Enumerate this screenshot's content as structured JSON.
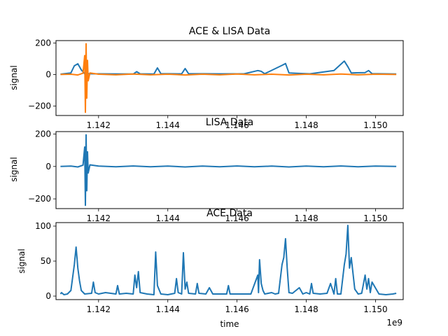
{
  "figure": {
    "xlabel": "time",
    "x_offset_label": "1e9",
    "colors": {
      "lisa": "#1f77b4",
      "ace_top": "#1f77b4",
      "top_overlay": "#ff7f0e"
    }
  },
  "chart_data": [
    {
      "type": "line",
      "title": "ACE & LISA Data",
      "xlabel": "",
      "ylabel": "signal",
      "xlim": [
        1.14077,
        1.1508
      ],
      "ylim": [
        -260,
        215
      ],
      "x_ticks": [
        1.142,
        1.144,
        1.146,
        1.148,
        1.15
      ],
      "x_tick_labels": [
        "1.142",
        "1.144",
        "1.146",
        "1.148",
        "1.150"
      ],
      "y_ticks": [
        -200,
        0,
        200
      ],
      "y_tick_labels": [
        "−200",
        "0",
        "200"
      ],
      "grid": false,
      "series": [
        {
          "color": "#1f77b4",
          "x": [
            1.1409,
            1.1412,
            1.1413,
            1.1414,
            1.1415,
            1.1416,
            1.142,
            1.143,
            1.1431,
            1.1432,
            1.1436,
            1.1437,
            1.1438,
            1.1444,
            1.1445,
            1.1446,
            1.1455,
            1.1462,
            1.1466,
            1.1467,
            1.1468,
            1.1473,
            1.1474,
            1.1475,
            1.1481,
            1.1488,
            1.1491,
            1.1492,
            1.1493,
            1.1497,
            1.1498,
            1.1499,
            1.1506
          ],
          "y": [
            2,
            10,
            55,
            68,
            30,
            5,
            4,
            3,
            18,
            4,
            3,
            42,
            5,
            4,
            38,
            5,
            4,
            4,
            25,
            20,
            5,
            58,
            70,
            10,
            4,
            25,
            85,
            50,
            10,
            12,
            25,
            5,
            3
          ]
        },
        {
          "color": "#ff7f0e",
          "x": [
            1.1409,
            1.1412,
            1.1414,
            1.14155,
            1.1416,
            1.14162,
            1.14164,
            1.14166,
            1.14168,
            1.1417,
            1.14175,
            1.142,
            1.1425,
            1.143,
            1.1435,
            1.144,
            1.1445,
            1.145,
            1.1455,
            1.146,
            1.1465,
            1.147,
            1.1475,
            1.148,
            1.1485,
            1.149,
            1.1495,
            1.15,
            1.1506
          ],
          "y": [
            0,
            2,
            -3,
            8,
            120,
            -240,
            195,
            -150,
            90,
            -40,
            10,
            2,
            -2,
            3,
            -2,
            2,
            -3,
            2,
            -2,
            3,
            -2,
            2,
            -3,
            2,
            -2,
            3,
            -2,
            2,
            0
          ]
        }
      ]
    },
    {
      "type": "line",
      "title": "LISA Data",
      "xlabel": "",
      "ylabel": "signal",
      "xlim": [
        1.14077,
        1.1508
      ],
      "ylim": [
        -260,
        215
      ],
      "x_ticks": [
        1.142,
        1.144,
        1.146,
        1.148,
        1.15
      ],
      "x_tick_labels": [
        "1.142",
        "1.144",
        "1.146",
        "1.148",
        "1.150"
      ],
      "y_ticks": [
        -200,
        0,
        200
      ],
      "y_tick_labels": [
        "−200",
        "0",
        "200"
      ],
      "grid": false,
      "series": [
        {
          "color": "#1f77b4",
          "x": [
            1.1409,
            1.1412,
            1.1414,
            1.14155,
            1.1416,
            1.14162,
            1.14164,
            1.14166,
            1.14168,
            1.1417,
            1.14175,
            1.142,
            1.1425,
            1.143,
            1.1435,
            1.144,
            1.1445,
            1.145,
            1.1455,
            1.146,
            1.1465,
            1.147,
            1.1475,
            1.148,
            1.1485,
            1.149,
            1.1495,
            1.15,
            1.1506
          ],
          "y": [
            0,
            2,
            -3,
            8,
            120,
            -240,
            195,
            -150,
            90,
            -40,
            10,
            2,
            -2,
            3,
            -2,
            2,
            -3,
            2,
            -2,
            3,
            -2,
            2,
            -3,
            2,
            -2,
            3,
            -2,
            2,
            0
          ]
        }
      ]
    },
    {
      "type": "line",
      "title": "ACE Data",
      "xlabel": "time",
      "ylabel": "signal",
      "xlim": [
        1.14077,
        1.1508
      ],
      "ylim": [
        -5,
        105
      ],
      "x_ticks": [
        1.142,
        1.144,
        1.146,
        1.148,
        1.15
      ],
      "x_tick_labels": [
        "1.142",
        "1.144",
        "1.146",
        "1.148",
        "1.150"
      ],
      "y_ticks": [
        0,
        50,
        100
      ],
      "y_tick_labels": [
        "0",
        "50",
        "100"
      ],
      "grid": false,
      "series": [
        {
          "color": "#1f77b4",
          "x": [
            1.1409,
            1.14093,
            1.141,
            1.1411,
            1.1412,
            1.1413,
            1.14135,
            1.1414,
            1.14145,
            1.1415,
            1.1416,
            1.1418,
            1.14185,
            1.1419,
            1.142,
            1.1422,
            1.1425,
            1.14255,
            1.1426,
            1.1428,
            1.143,
            1.14305,
            1.1431,
            1.14315,
            1.1432,
            1.1434,
            1.1436,
            1.14365,
            1.1437,
            1.1438,
            1.144,
            1.1442,
            1.14425,
            1.1443,
            1.1444,
            1.14445,
            1.1445,
            1.14455,
            1.1446,
            1.1448,
            1.14485,
            1.1449,
            1.1451,
            1.1452,
            1.1453,
            1.1455,
            1.1457,
            1.14575,
            1.1458,
            1.146,
            1.1462,
            1.1464,
            1.1466,
            1.14662,
            1.14665,
            1.1467,
            1.14675,
            1.1468,
            1.147,
            1.1471,
            1.1472,
            1.1473,
            1.14735,
            1.1474,
            1.14745,
            1.1475,
            1.1476,
            1.1478,
            1.1479,
            1.148,
            1.1481,
            1.14815,
            1.1482,
            1.1484,
            1.1486,
            1.1487,
            1.1488,
            1.14885,
            1.1489,
            1.149,
            1.1491,
            1.14915,
            1.1492,
            1.14925,
            1.1493,
            1.1494,
            1.1495,
            1.1496,
            1.1497,
            1.14975,
            1.1498,
            1.14985,
            1.1499,
            1.1501,
            1.1503,
            1.1505,
            1.1506
          ],
          "y": [
            3,
            5,
            2,
            3,
            8,
            45,
            70,
            40,
            22,
            8,
            3,
            4,
            20,
            5,
            3,
            5,
            3,
            15,
            3,
            4,
            3,
            30,
            12,
            35,
            5,
            3,
            2,
            63,
            15,
            3,
            2,
            4,
            25,
            5,
            3,
            62,
            10,
            20,
            4,
            3,
            18,
            4,
            3,
            12,
            3,
            3,
            3,
            15,
            3,
            3,
            3,
            3,
            30,
            5,
            52,
            18,
            8,
            3,
            5,
            3,
            4,
            45,
            55,
            82,
            40,
            5,
            4,
            12,
            3,
            5,
            3,
            18,
            4,
            3,
            4,
            18,
            3,
            25,
            3,
            3,
            45,
            60,
            101,
            40,
            55,
            10,
            3,
            4,
            30,
            10,
            25,
            5,
            20,
            3,
            2,
            3,
            4
          ]
        }
      ]
    }
  ]
}
